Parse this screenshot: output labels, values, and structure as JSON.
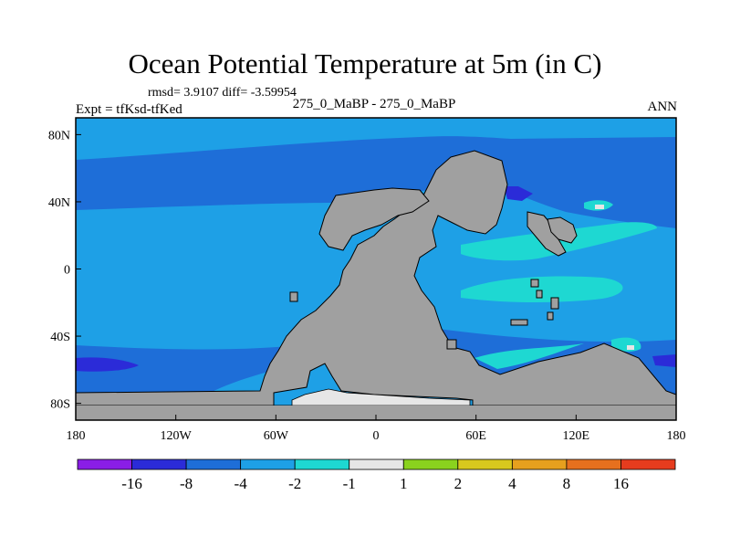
{
  "chart_data": {
    "type": "heatmap",
    "title": "Ocean Potential Temperature at 5m (in C)",
    "stats_text": "rmsd= 3.9107 diff= -3.59954",
    "subtitle": "275_0_MaBP - 275_0_MaBP",
    "left_label": "Expt = tfKsd-tfKed",
    "right_label": "ANN",
    "x_range": [
      -180,
      180
    ],
    "y_range": [
      -90,
      90
    ],
    "x_ticks": [
      {
        "value": -180,
        "label": "180"
      },
      {
        "value": -120,
        "label": "120W"
      },
      {
        "value": -60,
        "label": "60W"
      },
      {
        "value": 0,
        "label": "0"
      },
      {
        "value": 60,
        "label": "60E"
      },
      {
        "value": 120,
        "label": "120E"
      },
      {
        "value": 180,
        "label": "180"
      }
    ],
    "y_ticks": [
      {
        "value": 80,
        "label": "80N"
      },
      {
        "value": 40,
        "label": "40N"
      },
      {
        "value": 0,
        "label": "0"
      },
      {
        "value": -40,
        "label": "40S"
      },
      {
        "value": -80,
        "label": "80S"
      }
    ],
    "colorbar": {
      "colors": [
        "#8a1ee6",
        "#2b2bd8",
        "#1e6ed8",
        "#1ea0e6",
        "#1ed8d2",
        "#e6e6e6",
        "#8ad21e",
        "#d8c81e",
        "#e6a01e",
        "#e6701e",
        "#e63c1e"
      ],
      "labels": [
        "-16",
        "-8",
        "-4",
        "-2",
        "-1",
        "1",
        "2",
        "4",
        "8",
        "16"
      ]
    },
    "colors": {
      "land": "#a0a0a0",
      "background_ocean": "#1ea0e6",
      "dark_band": "#1e6ed8",
      "very_cold": "#2b2bd8",
      "warm_cyan": "#1ed8d2",
      "near_zero": "#e6e6e6"
    }
  }
}
